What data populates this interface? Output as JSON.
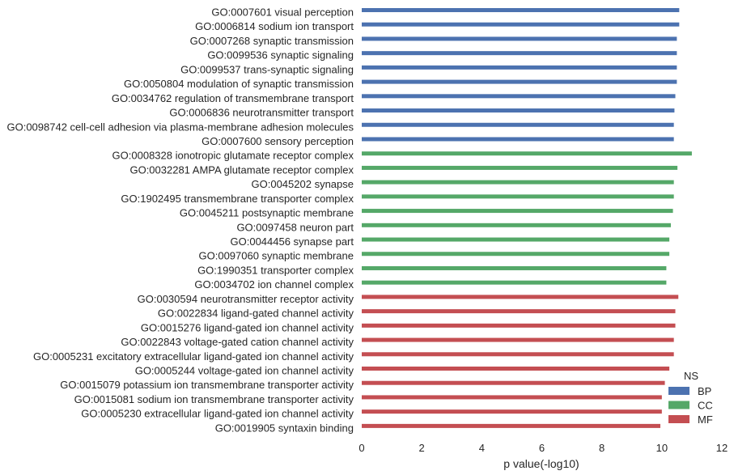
{
  "chart_data": {
    "type": "bar",
    "orientation": "horizontal",
    "xlabel": "p value(-log10)",
    "ylabel": "",
    "xlim": [
      0,
      12
    ],
    "xticks": [
      0,
      2,
      4,
      6,
      8,
      10,
      12
    ],
    "grid": false,
    "legend": {
      "title": "NS",
      "placement": "bottom-right",
      "entries": [
        {
          "name": "BP",
          "color": "#4c72b0"
        },
        {
          "name": "CC",
          "color": "#55a868"
        },
        {
          "name": "MF",
          "color": "#c44e52"
        }
      ]
    },
    "categories": [
      {
        "label": "GO:0007601 visual perception",
        "value": 10.58,
        "group": "BP"
      },
      {
        "label": "GO:0006814 sodium ion transport",
        "value": 10.58,
        "group": "BP"
      },
      {
        "label": "GO:0007268 synaptic transmission",
        "value": 10.5,
        "group": "BP"
      },
      {
        "label": "GO:0099536 synaptic signaling",
        "value": 10.5,
        "group": "BP"
      },
      {
        "label": "GO:0099537 trans-synaptic signaling",
        "value": 10.5,
        "group": "BP"
      },
      {
        "label": "GO:0050804 modulation of synaptic transmission",
        "value": 10.5,
        "group": "BP"
      },
      {
        "label": "GO:0034762 regulation of transmembrane transport",
        "value": 10.45,
        "group": "BP"
      },
      {
        "label": "GO:0006836 neurotransmitter transport",
        "value": 10.42,
        "group": "BP"
      },
      {
        "label": "GO:0098742 cell-cell adhesion via plasma-membrane adhesion molecules",
        "value": 10.4,
        "group": "BP"
      },
      {
        "label": "GO:0007600 sensory perception",
        "value": 10.4,
        "group": "BP"
      },
      {
        "label": "GO:0008328 ionotropic glutamate receptor complex",
        "value": 11.0,
        "group": "CC"
      },
      {
        "label": "GO:0032281 AMPA glutamate receptor complex",
        "value": 10.52,
        "group": "CC"
      },
      {
        "label": "GO:0045202 synapse",
        "value": 10.4,
        "group": "CC"
      },
      {
        "label": "GO:1902495 transmembrane transporter complex",
        "value": 10.4,
        "group": "CC"
      },
      {
        "label": "GO:0045211 postsynaptic membrane",
        "value": 10.37,
        "group": "CC"
      },
      {
        "label": "GO:0097458 neuron part",
        "value": 10.3,
        "group": "CC"
      },
      {
        "label": "GO:0044456 synapse part",
        "value": 10.25,
        "group": "CC"
      },
      {
        "label": "GO:0097060 synaptic membrane",
        "value": 10.25,
        "group": "CC"
      },
      {
        "label": "GO:1990351 transporter complex",
        "value": 10.15,
        "group": "CC"
      },
      {
        "label": "GO:0034702 ion channel complex",
        "value": 10.15,
        "group": "CC"
      },
      {
        "label": "GO:0030594 neurotransmitter receptor activity",
        "value": 10.55,
        "group": "MF"
      },
      {
        "label": "GO:0022834 ligand-gated channel activity",
        "value": 10.45,
        "group": "MF"
      },
      {
        "label": "GO:0015276 ligand-gated ion channel activity",
        "value": 10.45,
        "group": "MF"
      },
      {
        "label": "GO:0022843 voltage-gated cation channel activity",
        "value": 10.4,
        "group": "MF"
      },
      {
        "label": "GO:0005231 excitatory extracellular ligand-gated ion channel activity",
        "value": 10.4,
        "group": "MF"
      },
      {
        "label": "GO:0005244 voltage-gated ion channel activity",
        "value": 10.25,
        "group": "MF"
      },
      {
        "label": "GO:0015079 potassium ion transmembrane transporter activity",
        "value": 10.1,
        "group": "MF"
      },
      {
        "label": "GO:0015081 sodium ion transmembrane transporter activity",
        "value": 10.0,
        "group": "MF"
      },
      {
        "label": "GO:0005230 extracellular ligand-gated ion channel activity",
        "value": 10.0,
        "group": "MF"
      },
      {
        "label": "GO:0019905 syntaxin binding",
        "value": 9.95,
        "group": "MF"
      }
    ]
  }
}
